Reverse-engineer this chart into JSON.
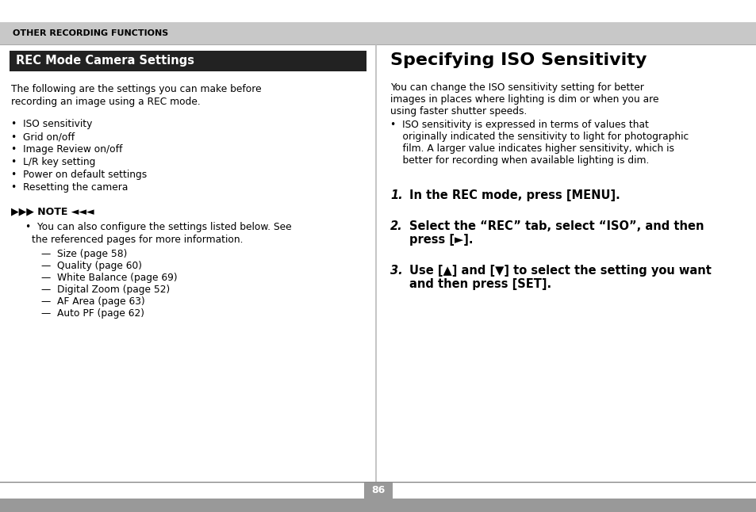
{
  "page_bg": "#ffffff",
  "header_bg": "#c8c8c8",
  "header_text": "OTHER RECORDING FUNCTIONS",
  "header_text_color": "#000000",
  "left_title_bg": "#222222",
  "left_title_text": "REC Mode Camera Settings",
  "left_title_color": "#ffffff",
  "right_title": "Specifying ISO Sensitivity",
  "footer_page": "86",
  "footer_bg": "#999999",
  "footer_text_color": "#ffffff",
  "left_body_intro_line1": "The following are the settings you can make before",
  "left_body_intro_line2": "recording an image using a REC mode.",
  "left_bullets": [
    "•  ISO sensitivity",
    "•  Grid on/off",
    "•  Image Review on/off",
    "•  L/R key setting",
    "•  Power on default settings",
    "•  Resetting the camera"
  ],
  "note_items": [
    "—  Size (page 58)",
    "—  Quality (page 60)",
    "—  White Balance (page 69)",
    "—  Digital Zoom (page 52)",
    "—  AF Area (page 63)",
    "—  Auto PF (page 62)"
  ],
  "right_intro_lines": [
    "You can change the ISO sensitivity setting for better",
    "images in places where lighting is dim or when you are",
    "using faster shutter speeds."
  ],
  "right_bullet_lines": [
    "•  ISO sensitivity is expressed in terms of values that",
    "    originally indicated the sensitivity to light for photographic",
    "    film. A larger value indicates higher sensitivity, which is",
    "    better for recording when available lighting is dim."
  ],
  "step1_num": "1.",
  "step1_lines": [
    "In the REC mode, press [MENU]."
  ],
  "step2_num": "2.",
  "step2_lines": [
    "Select the “REC” tab, select “ISO”, and then",
    "press [►]."
  ],
  "step3_num": "3.",
  "step3_lines": [
    "Use [▲] and [▼] to select the setting you want",
    "and then press [SET]."
  ]
}
